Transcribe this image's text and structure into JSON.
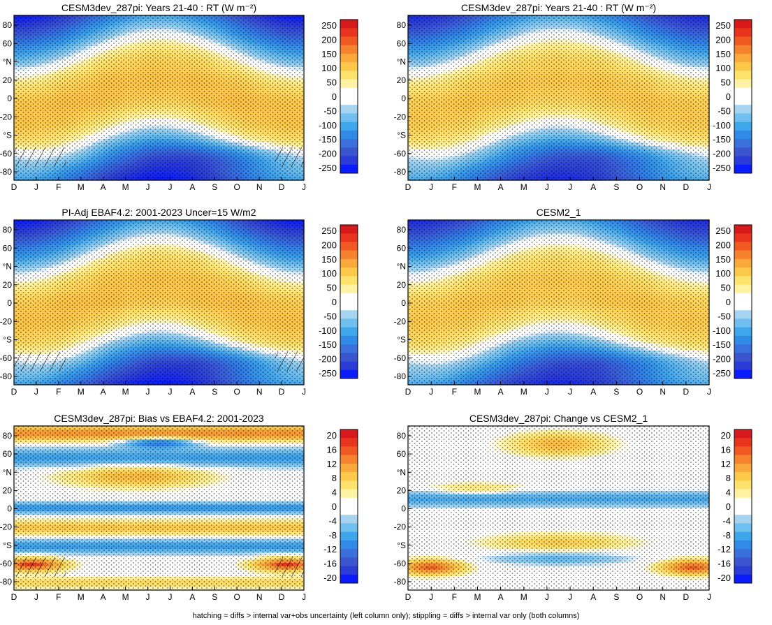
{
  "chart_data": [
    {
      "type": "heatmap",
      "title": "CESM3dev_287pi: Years 21-40 : RT (W m⁻²)",
      "x_ticks": [
        "D",
        "J",
        "F",
        "M",
        "A",
        "M",
        "J",
        "J",
        "A",
        "S",
        "O",
        "N",
        "D",
        "J"
      ],
      "y_ticks": [
        "80",
        "60",
        "°N",
        "20",
        "0",
        "-20",
        "°S",
        "-60",
        "-80"
      ],
      "ylim": [
        -90,
        90
      ],
      "colorbar_labels": [
        "250",
        "200",
        "150",
        "100",
        "50",
        "0",
        "-50",
        "-100",
        "-150",
        "-200",
        "-250"
      ],
      "field": "seasonal",
      "hatching": true,
      "stippling": true
    },
    {
      "type": "heatmap",
      "title": "CESM3dev_287pi: Years 21-40 : RT (W m⁻²)",
      "x_ticks": [
        "D",
        "J",
        "F",
        "M",
        "A",
        "M",
        "J",
        "J",
        "A",
        "S",
        "O",
        "N",
        "D",
        "J"
      ],
      "y_ticks": [
        "80",
        "60",
        "°N",
        "20",
        "0",
        "-20",
        "°S",
        "-60",
        "-80"
      ],
      "ylim": [
        -90,
        90
      ],
      "colorbar_labels": [
        "250",
        "200",
        "150",
        "100",
        "50",
        "0",
        "-50",
        "-100",
        "-150",
        "-200",
        "-250"
      ],
      "field": "seasonal",
      "hatching": false,
      "stippling": true
    },
    {
      "type": "heatmap",
      "title": "PI-Adj EBAF4.2: 2001-2023 Uncer=15 W/m2",
      "x_ticks": [
        "D",
        "J",
        "F",
        "M",
        "A",
        "M",
        "J",
        "J",
        "A",
        "S",
        "O",
        "N",
        "D",
        "J"
      ],
      "y_ticks": [
        "80",
        "60",
        "°N",
        "20",
        "0",
        "-20",
        "°S",
        "-60",
        "-80"
      ],
      "ylim": [
        -90,
        90
      ],
      "colorbar_labels": [
        "250",
        "200",
        "150",
        "100",
        "50",
        "0",
        "-50",
        "-100",
        "-150",
        "-200",
        "-250"
      ],
      "field": "seasonal",
      "hatching": true,
      "stippling": true
    },
    {
      "type": "heatmap",
      "title": "CESM2_1",
      "x_ticks": [
        "D",
        "J",
        "F",
        "M",
        "A",
        "M",
        "J",
        "J",
        "A",
        "S",
        "O",
        "N",
        "D",
        "J"
      ],
      "y_ticks": [
        "80",
        "60",
        "°N",
        "20",
        "0",
        "-20",
        "°S",
        "-60",
        "-80"
      ],
      "ylim": [
        -90,
        90
      ],
      "colorbar_labels": [
        "250",
        "200",
        "150",
        "100",
        "50",
        "0",
        "-50",
        "-100",
        "-150",
        "-200",
        "-250"
      ],
      "field": "seasonal",
      "hatching": false,
      "stippling": true
    },
    {
      "type": "heatmap",
      "title": "CESM3dev_287pi: Bias vs EBAF4.2: 2001-2023",
      "x_ticks": [
        "D",
        "J",
        "F",
        "M",
        "A",
        "M",
        "J",
        "J",
        "A",
        "S",
        "O",
        "N",
        "D",
        "J"
      ],
      "y_ticks": [
        "80",
        "60",
        "°N",
        "20",
        "0",
        "-20",
        "°S",
        "-60",
        "-80"
      ],
      "ylim": [
        -90,
        90
      ],
      "colorbar_labels": [
        "20",
        "16",
        "12",
        "8",
        "4",
        "0",
        "-4",
        "-8",
        "-12",
        "-16",
        "-20"
      ],
      "field": "bias",
      "hatching": true,
      "stippling": true
    },
    {
      "type": "heatmap",
      "title": "CESM3dev_287pi: Change vs CESM2_1",
      "x_ticks": [
        "D",
        "J",
        "F",
        "M",
        "A",
        "M",
        "J",
        "J",
        "A",
        "S",
        "O",
        "N",
        "D",
        "J"
      ],
      "y_ticks": [
        "80",
        "60",
        "°N",
        "20",
        "0",
        "-20",
        "°S",
        "-60",
        "-80"
      ],
      "ylim": [
        -90,
        90
      ],
      "colorbar_labels": [
        "20",
        "16",
        "12",
        "8",
        "4",
        "0",
        "-4",
        "-8",
        "-12",
        "-16",
        "-20"
      ],
      "field": "change",
      "hatching": false,
      "stippling": true
    }
  ],
  "colorbar_colors": [
    "#d7191c",
    "#e8341c",
    "#f05a22",
    "#f5822c",
    "#f9a83a",
    "#fcc84a",
    "#fde26c",
    "#fff2a0",
    "#ffffff",
    "#ffffff",
    "#a6d4f0",
    "#6fc0ee",
    "#3ea6ea",
    "#2f8be6",
    "#3a6fdc",
    "#3b55cf",
    "#2b3bd6",
    "#0a1cff"
  ],
  "footer": "hatching = diffs > internal var+obs uncertainty (left column only); stippling = diffs > internal var only (both columns)"
}
